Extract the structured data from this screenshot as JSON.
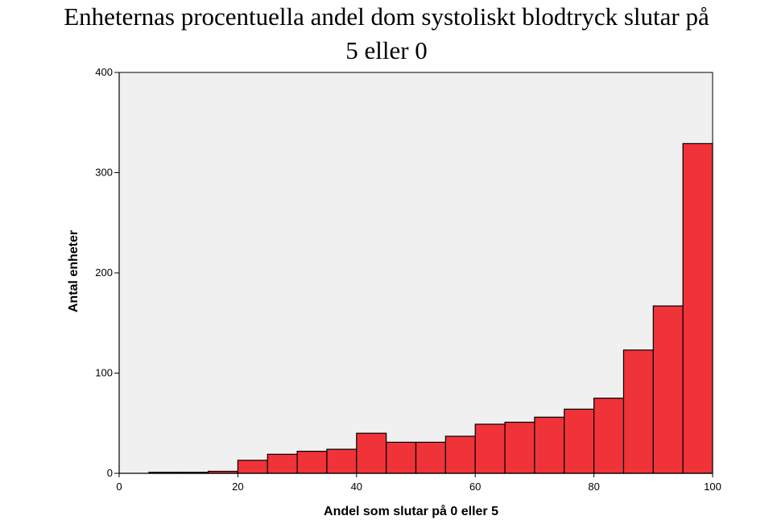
{
  "chart_data": {
    "type": "bar",
    "title_line1": "Enheternas  procentuella andel dom systoliskt blodtryck slutar på",
    "title_line2": "5 eller 0",
    "xlabel": "Andel som slutar på 0 eller 5",
    "ylabel": "Antal enheter",
    "xlim": [
      0,
      100
    ],
    "ylim": [
      0,
      400
    ],
    "x_ticks": [
      0,
      20,
      40,
      60,
      80,
      100
    ],
    "y_ticks": [
      0,
      100,
      200,
      300,
      400
    ],
    "bin_width": 5,
    "bin_starts": [
      5,
      10,
      15,
      20,
      25,
      30,
      35,
      40,
      45,
      50,
      55,
      60,
      65,
      70,
      75,
      80,
      85,
      90,
      95
    ],
    "values": [
      1,
      1,
      2,
      13,
      19,
      22,
      24,
      40,
      31,
      31,
      37,
      49,
      51,
      56,
      64,
      75,
      123,
      167,
      329
    ],
    "bar_color": "#ef3338",
    "plot_background": "#f0f0f0",
    "grid": false
  }
}
